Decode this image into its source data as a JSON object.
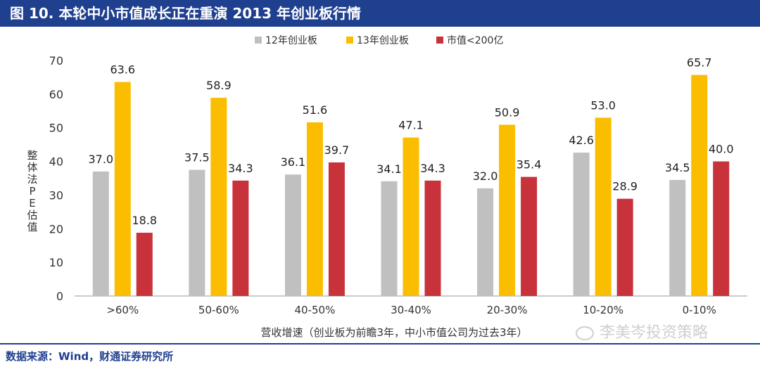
{
  "header": {
    "title": "图 10. 本轮中小市值成长正在重演 2013 年创业板行情"
  },
  "footer": {
    "source": "数据来源：Wind，财通证券研究所"
  },
  "watermark": {
    "text": "李美岑投资策略"
  },
  "chart_data": {
    "type": "bar",
    "title": "",
    "xlabel": "营收增速（创业板为前瞻3年，中小市值公司为过去3年）",
    "ylabel": "整体法PE估值",
    "ylim": [
      0,
      70
    ],
    "yticks": [
      0,
      10,
      20,
      30,
      40,
      50,
      60,
      70
    ],
    "grid": false,
    "legend": "top",
    "categories": [
      ">60%",
      "50-60%",
      "40-50%",
      "30-40%",
      "20-30%",
      "10-20%",
      "0-10%"
    ],
    "series": [
      {
        "name": "12年创业板",
        "color": "#c0c0c0",
        "values": [
          37.0,
          37.5,
          36.1,
          34.1,
          32.0,
          42.6,
          34.5
        ],
        "labels": [
          "37.0",
          "37.5",
          "36.1",
          "34.1",
          "32.0",
          "42.6",
          "34.5"
        ]
      },
      {
        "name": "13年创业板",
        "color": "#fbbd00",
        "values": [
          63.6,
          58.9,
          51.6,
          47.1,
          50.9,
          53.0,
          65.7
        ],
        "labels": [
          "63.6",
          "58.9",
          "51.6",
          "47.1",
          "50.9",
          "53.0",
          "65.7"
        ]
      },
      {
        "name": "市值<200亿",
        "color": "#c8323a",
        "values": [
          18.8,
          34.3,
          39.7,
          34.3,
          35.4,
          28.9,
          40.0
        ],
        "labels": [
          "18.8",
          "34.3",
          "39.7",
          "34.3",
          "35.4",
          "28.9",
          "40.0"
        ]
      }
    ]
  }
}
